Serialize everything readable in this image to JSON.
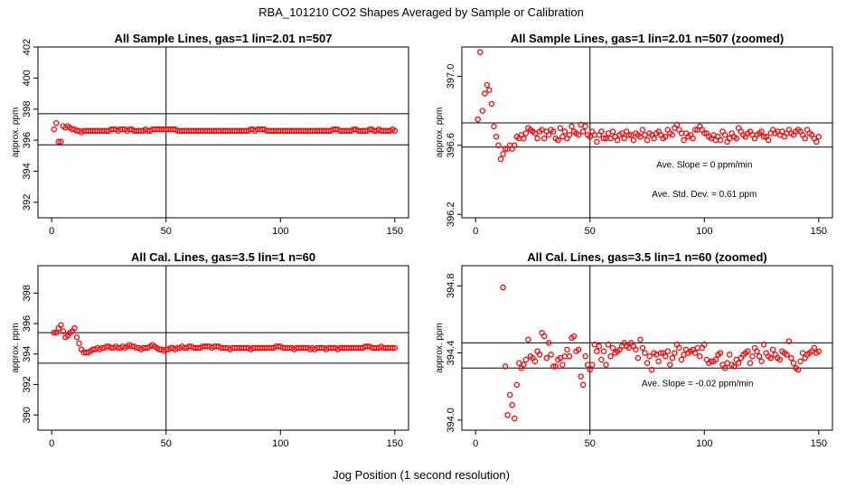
{
  "figure": {
    "title": "RBA_101210  CO2 Shapes Averaged by Sample or Calibration",
    "xlabel": "Jog Position (1 second resolution)"
  },
  "chart_data": [
    {
      "id": "p1",
      "type": "scatter",
      "title": "All Sample Lines, gas=1 lin=2.01 n=507",
      "ylabel": "approx. ppm",
      "xlim": [
        0,
        150
      ],
      "ylim": [
        391,
        402
      ],
      "xticks": [
        0,
        50,
        100,
        150
      ],
      "yticks": [
        392,
        394,
        396,
        398,
        400,
        402
      ],
      "vline": 50,
      "hlines": [
        395.7,
        397.7
      ],
      "point_color": "#ff0000",
      "series": [
        {
          "x_start": 1,
          "x_step": 1,
          "y": [
            396.7,
            397.1,
            395.9,
            395.9,
            396.9,
            396.8,
            396.9,
            396.8,
            396.7,
            396.7,
            396.6,
            396.6,
            396.5,
            396.6,
            396.6,
            396.6,
            396.6,
            396.6,
            396.6,
            396.6,
            396.6,
            396.6,
            396.6,
            396.6,
            396.6,
            396.7,
            396.7,
            396.7,
            396.6,
            396.7,
            396.7,
            396.7,
            396.6,
            396.7,
            396.7,
            396.6,
            396.6,
            396.6,
            396.6,
            396.6,
            396.7,
            396.6,
            396.6,
            396.7,
            396.7,
            396.7,
            396.7,
            396.7,
            396.7,
            396.7,
            396.7,
            396.7,
            396.7,
            396.7,
            396.6,
            396.6,
            396.6,
            396.6,
            396.6,
            396.6,
            396.6,
            396.6,
            396.6,
            396.6,
            396.6,
            396.6,
            396.6,
            396.6,
            396.6,
            396.6,
            396.6,
            396.6,
            396.6,
            396.6,
            396.6,
            396.6,
            396.6,
            396.6,
            396.6,
            396.6,
            396.6,
            396.6,
            396.6,
            396.6,
            396.6,
            396.6,
            396.7,
            396.7,
            396.6,
            396.7,
            396.7,
            396.7,
            396.7,
            396.6,
            396.6,
            396.6,
            396.6,
            396.6,
            396.6,
            396.6,
            396.6,
            396.6,
            396.6,
            396.6,
            396.6,
            396.6,
            396.6,
            396.6,
            396.6,
            396.6,
            396.6,
            396.6,
            396.6,
            396.6,
            396.6,
            396.6,
            396.6,
            396.6,
            396.6,
            396.6,
            396.6,
            396.6,
            396.7,
            396.7,
            396.7,
            396.6,
            396.6,
            396.6,
            396.6,
            396.6,
            396.6,
            396.7,
            396.7,
            396.6,
            396.6,
            396.6,
            396.6,
            396.6,
            396.7,
            396.7,
            396.6,
            396.6,
            396.7,
            396.6,
            396.6,
            396.6,
            396.6,
            396.6,
            396.7,
            396.6
          ]
        }
      ]
    },
    {
      "id": "p2",
      "type": "scatter",
      "title": "All Sample Lines, gas=1 lin=2.01 n=507 (zoomed)",
      "ylabel": "approx. ppm",
      "xlim": [
        0,
        150
      ],
      "ylim": [
        396.18,
        397.17
      ],
      "xticks": [
        0,
        50,
        100,
        150
      ],
      "yticks": [
        396.2,
        396.6,
        397.0
      ],
      "ytick_labels": [
        "396.2",
        "396.6",
        "397.0"
      ],
      "vline": 50,
      "hlines": [
        396.59,
        396.73
      ],
      "point_color": "#ff0000",
      "annotations": [
        {
          "text": "Ave. Slope =  0  ppm/min",
          "x": 100,
          "y": 396.47
        },
        {
          "text": "Ave. Std. Dev. =  0.61  ppm",
          "x": 100,
          "y": 396.3
        }
      ],
      "series": [
        {
          "x_start": 1,
          "x_step": 1,
          "y": [
            396.75,
            397.14,
            396.8,
            396.9,
            396.95,
            396.92,
            396.84,
            396.71,
            396.65,
            396.6,
            396.52,
            396.55,
            396.58,
            396.58,
            396.6,
            396.58,
            396.6,
            396.65,
            396.64,
            396.66,
            396.64,
            396.67,
            396.7,
            396.69,
            396.68,
            396.67,
            396.64,
            396.68,
            396.69,
            396.64,
            396.68,
            396.66,
            396.69,
            396.68,
            396.64,
            396.63,
            396.7,
            396.65,
            396.68,
            396.64,
            396.66,
            396.71,
            396.68,
            396.67,
            396.66,
            396.72,
            396.68,
            396.71,
            396.66,
            396.65,
            396.68,
            396.66,
            396.62,
            396.66,
            396.68,
            396.64,
            396.64,
            396.67,
            396.64,
            396.68,
            396.65,
            396.63,
            396.66,
            396.67,
            396.64,
            396.68,
            396.66,
            396.66,
            396.63,
            396.67,
            396.66,
            396.65,
            396.69,
            396.66,
            396.63,
            396.67,
            396.66,
            396.64,
            396.67,
            396.68,
            396.66,
            396.64,
            396.65,
            396.69,
            396.67,
            396.66,
            396.7,
            396.72,
            396.69,
            396.67,
            396.63,
            396.67,
            396.65,
            396.66,
            396.64,
            396.69,
            396.69,
            396.71,
            396.69,
            396.67,
            396.67,
            396.65,
            396.64,
            396.66,
            396.63,
            396.65,
            396.63,
            396.68,
            396.66,
            396.62,
            396.64,
            396.67,
            396.65,
            396.64,
            396.7,
            396.68,
            396.66,
            396.65,
            396.67,
            396.68,
            396.66,
            396.64,
            396.66,
            396.67,
            396.68,
            396.65,
            396.65,
            396.63,
            396.67,
            396.69,
            396.67,
            396.68,
            396.66,
            396.68,
            396.65,
            396.67,
            396.69,
            396.67,
            396.66,
            396.68,
            396.69,
            396.68,
            396.66,
            396.64,
            396.69,
            396.67,
            396.66,
            396.64,
            396.62,
            396.65
          ]
        }
      ]
    },
    {
      "id": "p3",
      "type": "scatter",
      "title": "All Cal. Lines, gas=3.5 lin=1 n=60",
      "ylabel": "approx. ppm",
      "xlim": [
        0,
        150
      ],
      "ylim": [
        389,
        399.8
      ],
      "xticks": [
        0,
        50,
        100,
        150
      ],
      "yticks": [
        390,
        392,
        394,
        396,
        398
      ],
      "vline": 50,
      "hlines": [
        393.4,
        395.4
      ],
      "point_color": "#ff0000",
      "series": [
        {
          "x_start": 1,
          "x_step": 1,
          "y": [
            395.4,
            395.4,
            395.7,
            395.9,
            395.5,
            395.1,
            395.2,
            395.4,
            395.5,
            395.7,
            395.1,
            394.7,
            394.3,
            394.1,
            394.1,
            394.1,
            394.2,
            394.3,
            394.3,
            394.4,
            394.3,
            394.4,
            394.4,
            394.5,
            394.5,
            394.4,
            394.4,
            394.5,
            394.4,
            394.4,
            394.5,
            394.4,
            394.5,
            394.6,
            394.5,
            394.5,
            394.4,
            394.4,
            394.3,
            394.4,
            394.4,
            394.4,
            394.5,
            394.6,
            394.5,
            394.4,
            394.3,
            394.3,
            394.2,
            394.3,
            394.3,
            394.4,
            394.4,
            394.3,
            394.4,
            394.4,
            394.5,
            394.4,
            394.4,
            394.5,
            394.5,
            394.4,
            394.4,
            394.4,
            394.4,
            394.5,
            394.5,
            394.5,
            394.5,
            394.4,
            394.5,
            394.5,
            394.5,
            394.4,
            394.4,
            394.4,
            394.4,
            394.3,
            394.4,
            394.4,
            394.4,
            394.4,
            394.4,
            394.4,
            394.4,
            394.4,
            394.3,
            394.4,
            394.4,
            394.4,
            394.4,
            394.4,
            394.4,
            394.4,
            394.4,
            394.4,
            394.4,
            394.5,
            394.5,
            394.5,
            394.4,
            394.4,
            394.4,
            394.4,
            394.4,
            394.3,
            394.4,
            394.4,
            394.4,
            394.4,
            394.4,
            394.4,
            394.3,
            394.4,
            394.3,
            394.4,
            394.4,
            394.4,
            394.4,
            394.3,
            394.4,
            394.4,
            394.4,
            394.4,
            394.3,
            394.4,
            394.4,
            394.4,
            394.4,
            394.4,
            394.4,
            394.4,
            394.4,
            394.4,
            394.4,
            394.4,
            394.5,
            394.5,
            394.5,
            394.4,
            394.4,
            394.4,
            394.4,
            394.5,
            394.4,
            394.4,
            394.4,
            394.4,
            394.4,
            394.4
          ]
        }
      ]
    },
    {
      "id": "p4",
      "type": "scatter",
      "title": "All Cal. Lines, gas=3.5 lin=1 n=60 (zoomed)",
      "ylabel": "approx. ppm",
      "xlim": [
        0,
        150
      ],
      "ylim": [
        393.94,
        394.92
      ],
      "xticks": [
        0,
        50,
        100,
        150
      ],
      "yticks": [
        394.0,
        394.4,
        394.8
      ],
      "ytick_labels": [
        "394.0",
        "394.4",
        "394.8"
      ],
      "vline": 50,
      "hlines": [
        394.31,
        394.46
      ],
      "point_color": "#ff0000",
      "annotations": [
        {
          "text": "Ave. Slope =  -0.02  ppm/min",
          "x": 97,
          "y": 394.2
        }
      ],
      "series": [
        {
          "x": [
            12,
            13,
            14,
            15,
            16,
            17,
            18,
            19,
            20,
            21,
            22,
            23,
            24,
            25,
            26,
            27,
            28,
            29,
            30,
            31,
            32,
            33,
            34,
            35,
            36,
            37,
            38,
            39,
            40,
            41,
            42,
            43,
            44,
            45,
            46,
            47,
            48,
            49,
            50,
            51,
            52,
            53,
            54,
            55,
            56,
            57,
            58,
            59,
            60,
            61,
            62,
            63,
            64,
            65,
            66,
            67,
            68,
            69,
            70,
            71,
            72,
            73,
            74,
            75,
            76,
            77,
            78,
            79,
            80,
            81,
            82,
            83,
            84,
            85,
            86,
            87,
            88,
            89,
            90,
            91,
            92,
            93,
            94,
            95,
            96,
            97,
            98,
            99,
            100,
            101,
            102,
            103,
            104,
            105,
            106,
            107,
            108,
            109,
            110,
            111,
            112,
            113,
            114,
            115,
            116,
            117,
            118,
            119,
            120,
            121,
            122,
            123,
            124,
            125,
            126,
            127,
            128,
            129,
            130,
            131,
            132,
            133,
            134,
            135,
            136,
            137,
            138,
            139,
            140,
            141,
            142,
            143,
            144,
            145,
            146,
            147,
            148,
            149,
            150
          ],
          "y": [
            394.79,
            394.32,
            394.03,
            394.15,
            394.09,
            394.01,
            394.21,
            394.34,
            394.31,
            394.33,
            394.36,
            394.48,
            394.38,
            394.37,
            394.35,
            394.41,
            394.39,
            394.52,
            394.5,
            394.37,
            394.46,
            394.39,
            394.32,
            394.32,
            394.36,
            394.37,
            394.33,
            394.38,
            394.42,
            394.38,
            394.49,
            394.5,
            394.41,
            394.42,
            394.26,
            394.21,
            394.38,
            394.33,
            394.3,
            394.33,
            394.45,
            394.41,
            394.44,
            394.36,
            394.41,
            394.33,
            394.45,
            394.38,
            394.43,
            394.4,
            394.41,
            394.42,
            394.44,
            394.46,
            394.44,
            394.43,
            394.46,
            394.44,
            394.42,
            394.37,
            394.48,
            394.43,
            394.4,
            394.34,
            394.38,
            394.3,
            394.4,
            394.39,
            394.35,
            394.4,
            394.4,
            394.38,
            394.41,
            394.33,
            394.37,
            394.4,
            394.45,
            394.43,
            394.36,
            394.39,
            394.42,
            394.4,
            394.41,
            394.42,
            394.4,
            394.43,
            394.38,
            394.43,
            394.45,
            394.36,
            394.34,
            394.35,
            394.35,
            394.36,
            394.39,
            394.4,
            394.33,
            394.31,
            394.34,
            394.39,
            394.33,
            394.32,
            394.36,
            394.34,
            394.37,
            394.39,
            394.4,
            394.41,
            394.34,
            394.38,
            394.43,
            394.41,
            394.38,
            394.35,
            394.45,
            394.4,
            394.38,
            394.37,
            394.42,
            394.39,
            394.37,
            394.36,
            394.41,
            394.4,
            394.39,
            394.47,
            394.37,
            394.34,
            394.31,
            394.3,
            394.35,
            394.4,
            394.37,
            394.39,
            394.4,
            394.41,
            394.43,
            394.4,
            394.41
          ]
        }
      ]
    }
  ]
}
